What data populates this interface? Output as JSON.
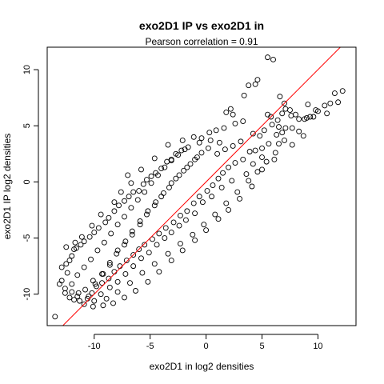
{
  "chart_data": {
    "type": "scatter",
    "title": "exo2D1 IP vs exo2D1 in",
    "subtitle": "Pearson correlation =  0.91",
    "xlabel": "exo2D1 in log2 densities",
    "ylabel": "exo2D1 IP log2 densities",
    "xlim": [
      -14.2,
      13.4
    ],
    "ylim": [
      -12.8,
      12.0
    ],
    "xticks": [
      -10,
      -5,
      0,
      5,
      10
    ],
    "yticks": [
      -10,
      -5,
      0,
      5,
      10
    ],
    "grid": false,
    "legend": "none",
    "reference_line": {
      "slope": 1,
      "intercept": 0,
      "color": "#ff0000"
    },
    "point_color": "#000000",
    "line_color": "#ff0000",
    "series": [
      {
        "points": [
          [
            5.5,
            11.1
          ],
          [
            6.0,
            10.9
          ],
          [
            4.4,
            8.7
          ],
          [
            3.8,
            8.6
          ],
          [
            4.6,
            9.1
          ],
          [
            12.2,
            8.1
          ],
          [
            11.5,
            7.9
          ],
          [
            11.8,
            7.1
          ],
          [
            11.1,
            7.0
          ],
          [
            10.6,
            6.8
          ],
          [
            10.0,
            6.3
          ],
          [
            9.6,
            5.8
          ],
          [
            9.3,
            5.8
          ],
          [
            9.0,
            5.7
          ],
          [
            8.8,
            5.6
          ],
          [
            8.3,
            5.6
          ],
          [
            8.0,
            6.0
          ],
          [
            7.6,
            5.9
          ],
          [
            7.5,
            6.4
          ],
          [
            7.1,
            6.5
          ],
          [
            6.8,
            6.1
          ],
          [
            6.6,
            7.6
          ],
          [
            7.0,
            7.0
          ],
          [
            6.4,
            5.5
          ],
          [
            5.8,
            5.8
          ],
          [
            5.5,
            6.0
          ],
          [
            5.9,
            5.1
          ],
          [
            6.5,
            4.9
          ],
          [
            7.1,
            4.8
          ],
          [
            7.7,
            4.8
          ],
          [
            8.3,
            4.5
          ],
          [
            6.8,
            4.4
          ],
          [
            6.3,
            4.2
          ],
          [
            5.2,
            4.6
          ],
          [
            4.8,
            4.1
          ],
          [
            4.2,
            4.3
          ],
          [
            3.4,
            7.7
          ],
          [
            2.2,
            6.5
          ],
          [
            2.4,
            6.0
          ],
          [
            1.8,
            6.2
          ],
          [
            3.3,
            5.4
          ],
          [
            2.6,
            5.2
          ],
          [
            1.6,
            4.8
          ],
          [
            0.9,
            4.6
          ],
          [
            0.3,
            4.4
          ],
          [
            -0.4,
            3.9
          ],
          [
            -1.1,
            4.0
          ],
          [
            -0.6,
            3.5
          ],
          [
            0.4,
            3.7
          ],
          [
            1.2,
            3.5
          ],
          [
            -1.6,
            3.1
          ],
          [
            -2.2,
            2.8
          ],
          [
            -2.7,
            2.5
          ],
          [
            -3.1,
            2.0
          ],
          [
            -3.5,
            1.8
          ],
          [
            -4.0,
            1.2
          ],
          [
            -4.5,
            0.8
          ],
          [
            -4.9,
            0.5
          ],
          [
            -5.3,
            0.2
          ],
          [
            -5.6,
            -0.2
          ],
          [
            -6.0,
            -0.8
          ],
          [
            -6.5,
            -0.9
          ],
          [
            -6.9,
            -1.3
          ],
          [
            -7.3,
            -1.7
          ],
          [
            -7.8,
            -2.1
          ],
          [
            -8.2,
            -2.6
          ],
          [
            -8.7,
            -3.2
          ],
          [
            -9.0,
            -3.6
          ],
          [
            -9.6,
            -4.1
          ],
          [
            -10.0,
            -4.5
          ],
          [
            -10.4,
            -4.9
          ],
          [
            -10.9,
            -5.3
          ],
          [
            -11.2,
            -5.6
          ],
          [
            -11.6,
            -5.9
          ],
          [
            -12.0,
            -6.6
          ],
          [
            -12.5,
            -7.3
          ],
          [
            -12.9,
            -7.6
          ],
          [
            -12.4,
            -8.1
          ],
          [
            -12.9,
            -8.8
          ],
          [
            -13.1,
            -9.1
          ],
          [
            -12.6,
            -9.5
          ],
          [
            -12.0,
            -9.8
          ],
          [
            -11.5,
            -10.2
          ],
          [
            -11.3,
            -10.6
          ],
          [
            -10.9,
            -10.9
          ],
          [
            -10.6,
            -10.4
          ],
          [
            -10.2,
            -9.9
          ],
          [
            -9.8,
            -9.3
          ],
          [
            -9.3,
            -9.0
          ],
          [
            -8.7,
            -8.6
          ],
          [
            -8.2,
            -8.0
          ],
          [
            -7.7,
            -7.5
          ],
          [
            -7.1,
            -7.0
          ],
          [
            -6.5,
            -6.5
          ],
          [
            -6.0,
            -6.0
          ],
          [
            -5.5,
            -5.6
          ],
          [
            -4.8,
            -5.1
          ],
          [
            -4.2,
            -4.6
          ],
          [
            -3.6,
            -4.1
          ],
          [
            -2.9,
            -3.6
          ],
          [
            -2.3,
            -3.0
          ],
          [
            -1.7,
            -2.6
          ],
          [
            -1.1,
            -1.9
          ],
          [
            -0.6,
            -1.3
          ],
          [
            0.1,
            -0.8
          ],
          [
            0.6,
            -0.3
          ],
          [
            1.1,
            0.3
          ],
          [
            1.5,
            0.8
          ],
          [
            2.0,
            1.3
          ],
          [
            2.6,
            1.7
          ],
          [
            3.3,
            2.0
          ],
          [
            3.9,
            2.7
          ],
          [
            4.4,
            2.8
          ],
          [
            5.0,
            3.0
          ],
          [
            5.6,
            3.4
          ],
          [
            6.5,
            3.4
          ],
          [
            7.0,
            3.7
          ],
          [
            6.2,
            2.6
          ],
          [
            5.0,
            2.2
          ],
          [
            4.2,
            1.6
          ],
          [
            3.6,
            0.7
          ],
          [
            2.3,
            0.1
          ],
          [
            1.4,
            -0.5
          ],
          [
            0.5,
            -1.3
          ],
          [
            -0.3,
            -1.8
          ],
          [
            -1.0,
            -2.8
          ],
          [
            -1.8,
            -3.4
          ],
          [
            -2.4,
            -3.9
          ],
          [
            -3.1,
            -4.5
          ],
          [
            -3.7,
            -5.0
          ],
          [
            -4.4,
            -5.6
          ],
          [
            -5.1,
            -6.3
          ],
          [
            -5.8,
            -6.8
          ],
          [
            -6.5,
            -7.5
          ],
          [
            -7.2,
            -8.2
          ],
          [
            -7.9,
            -8.9
          ],
          [
            -8.6,
            -9.4
          ],
          [
            -9.4,
            -10.0
          ],
          [
            -10.0,
            -10.6
          ],
          [
            -12.6,
            -9.9
          ],
          [
            -13.5,
            -12.0
          ],
          [
            -12.2,
            -10.3
          ],
          [
            -11.8,
            -10.5
          ],
          [
            -10.5,
            -10.2
          ],
          [
            -9.9,
            -9.1
          ],
          [
            -9.2,
            -8.2
          ],
          [
            -8.6,
            -7.2
          ],
          [
            -7.9,
            -6.1
          ],
          [
            -7.2,
            -5.3
          ],
          [
            -6.6,
            -4.4
          ],
          [
            -5.9,
            -3.5
          ],
          [
            -5.2,
            -2.6
          ],
          [
            -4.5,
            -1.8
          ],
          [
            -3.8,
            -1.0
          ],
          [
            -3.1,
            -0.1
          ],
          [
            -2.4,
            0.6
          ],
          [
            -1.7,
            1.3
          ],
          [
            -1.0,
            2.0
          ],
          [
            -0.4,
            2.6
          ],
          [
            0.2,
            3.0
          ],
          [
            1.0,
            2.5
          ],
          [
            1.7,
            2.9
          ],
          [
            2.4,
            3.2
          ],
          [
            3.1,
            3.6
          ],
          [
            -0.8,
            2.2
          ],
          [
            -1.4,
            1.6
          ],
          [
            -2.0,
            1.0
          ],
          [
            -2.7,
            0.3
          ],
          [
            -3.3,
            -0.5
          ],
          [
            -4.0,
            -1.3
          ],
          [
            -4.6,
            -2.1
          ],
          [
            -5.3,
            -2.9
          ],
          [
            -5.9,
            -3.8
          ],
          [
            -6.6,
            -4.7
          ],
          [
            -7.3,
            -5.6
          ],
          [
            -8.0,
            -6.4
          ],
          [
            -8.6,
            -7.4
          ],
          [
            -9.3,
            -8.2
          ],
          [
            -10.1,
            -8.8
          ],
          [
            -10.8,
            -9.6
          ],
          [
            -11.4,
            -9.9
          ],
          [
            -12.0,
            -9.1
          ],
          [
            -11.5,
            -8.3
          ],
          [
            -10.9,
            -7.6
          ],
          [
            -10.3,
            -6.9
          ],
          [
            -9.7,
            -6.1
          ],
          [
            -9.1,
            -5.4
          ],
          [
            -8.5,
            -4.6
          ],
          [
            -7.9,
            -3.8
          ],
          [
            -7.3,
            -3.1
          ],
          [
            -6.7,
            -2.3
          ],
          [
            -6.1,
            -1.6
          ],
          [
            -5.5,
            -0.9
          ],
          [
            -4.9,
            -0.1
          ],
          [
            -4.3,
            0.6
          ],
          [
            -3.7,
            1.3
          ],
          [
            -3.1,
            1.9
          ],
          [
            -2.5,
            2.4
          ],
          [
            -1.9,
            2.9
          ],
          [
            -8.2,
            -1.8
          ],
          [
            -7.6,
            -0.9
          ],
          [
            -6.7,
            -0.1
          ],
          [
            -9.4,
            -2.9
          ],
          [
            -10.2,
            -3.9
          ],
          [
            -11.1,
            -4.9
          ],
          [
            -11.8,
            -6.0
          ],
          [
            -12.2,
            -7.0
          ],
          [
            -12.5,
            -5.8
          ],
          [
            -11.7,
            -5.4
          ],
          [
            -3.4,
            3.3
          ],
          [
            -2.1,
            3.7
          ],
          [
            -4.6,
            2.1
          ],
          [
            -5.8,
            1.1
          ],
          [
            -7.0,
            0.6
          ],
          [
            -0.2,
            -3.8
          ],
          [
            0.8,
            -2.9
          ],
          [
            1.8,
            -1.9
          ],
          [
            2.8,
            -0.9
          ],
          [
            3.8,
            0.1
          ],
          [
            4.6,
            0.9
          ],
          [
            5.4,
            1.8
          ],
          [
            -1.2,
            -4.7
          ],
          [
            -2.3,
            -5.5
          ],
          [
            -3.4,
            -6.4
          ],
          [
            -4.6,
            -7.3
          ],
          [
            -5.7,
            -8.1
          ],
          [
            -6.8,
            -9.0
          ],
          [
            -7.9,
            -9.8
          ],
          [
            -8.9,
            -10.4
          ],
          [
            9.8,
            6.4
          ],
          [
            10.8,
            6.1
          ],
          [
            9.1,
            6.9
          ],
          [
            8.7,
            4.1
          ],
          [
            7.7,
            3.3
          ],
          [
            6.1,
            2.0
          ],
          [
            5.0,
            1.1
          ],
          [
            4.1,
            -0.4
          ],
          [
            3.0,
            -1.5
          ],
          [
            2.0,
            -2.5
          ],
          [
            1.1,
            -3.3
          ],
          [
            0.0,
            -4.3
          ],
          [
            -1.0,
            -5.2
          ],
          [
            -2.1,
            -6.1
          ],
          [
            -3.1,
            -7.0
          ],
          [
            -4.2,
            -8.0
          ],
          [
            -5.2,
            -8.9
          ],
          [
            -6.3,
            -9.7
          ],
          [
            -7.3,
            -10.3
          ],
          [
            -8.3,
            -10.8
          ],
          [
            -9.2,
            -11.0
          ],
          [
            -10.1,
            -11.1
          ]
        ]
      }
    ]
  }
}
